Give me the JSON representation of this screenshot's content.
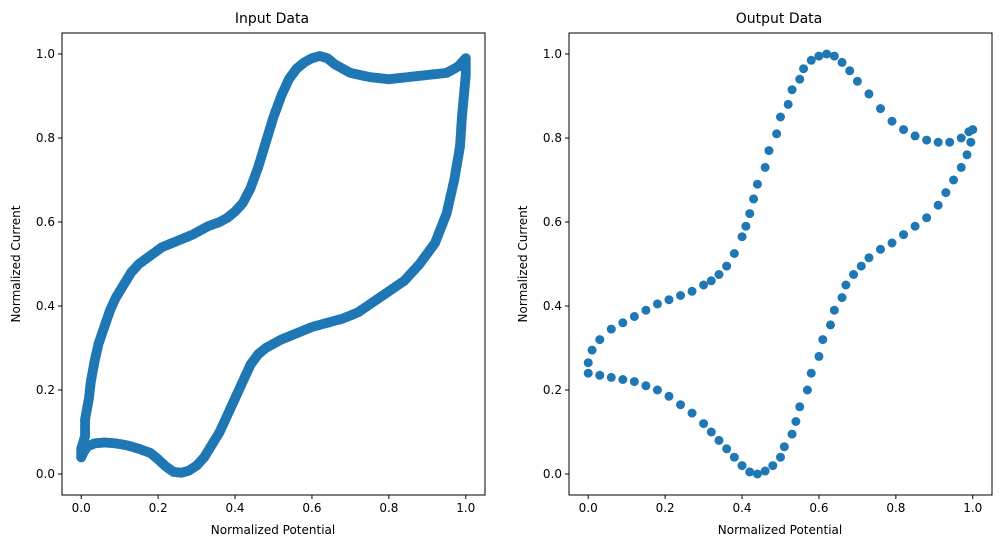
{
  "chart_data": [
    {
      "type": "scatter",
      "title": "Input Data",
      "xlabel": "Normalized Potential",
      "ylabel": "Normalized Current",
      "xlim": [
        -0.05,
        1.05
      ],
      "ylim": [
        -0.05,
        1.05
      ],
      "xticks": [
        "0.0",
        "0.2",
        "0.4",
        "0.6",
        "0.8",
        "1.0"
      ],
      "yticks": [
        "0.0",
        "0.2",
        "0.4",
        "0.6",
        "0.8",
        "1.0"
      ],
      "grid": false,
      "color": "#1f77b4",
      "points": [
        [
          0.0,
          0.04
        ],
        [
          0.0,
          0.06
        ],
        [
          0.01,
          0.09
        ],
        [
          0.01,
          0.13
        ],
        [
          0.02,
          0.18
        ],
        [
          0.025,
          0.22
        ],
        [
          0.035,
          0.27
        ],
        [
          0.045,
          0.31
        ],
        [
          0.06,
          0.35
        ],
        [
          0.075,
          0.39
        ],
        [
          0.09,
          0.42
        ],
        [
          0.11,
          0.45
        ],
        [
          0.13,
          0.48
        ],
        [
          0.15,
          0.5
        ],
        [
          0.18,
          0.52
        ],
        [
          0.21,
          0.54
        ],
        [
          0.25,
          0.555
        ],
        [
          0.29,
          0.57
        ],
        [
          0.33,
          0.59
        ],
        [
          0.36,
          0.6
        ],
        [
          0.38,
          0.61
        ],
        [
          0.4,
          0.625
        ],
        [
          0.42,
          0.645
        ],
        [
          0.44,
          0.68
        ],
        [
          0.46,
          0.73
        ],
        [
          0.48,
          0.79
        ],
        [
          0.5,
          0.85
        ],
        [
          0.52,
          0.9
        ],
        [
          0.54,
          0.94
        ],
        [
          0.56,
          0.965
        ],
        [
          0.58,
          0.98
        ],
        [
          0.6,
          0.99
        ],
        [
          0.62,
          0.995
        ],
        [
          0.64,
          0.99
        ],
        [
          0.66,
          0.975
        ],
        [
          0.7,
          0.955
        ],
        [
          0.75,
          0.945
        ],
        [
          0.8,
          0.94
        ],
        [
          0.85,
          0.945
        ],
        [
          0.9,
          0.95
        ],
        [
          0.95,
          0.955
        ],
        [
          0.98,
          0.97
        ],
        [
          1.0,
          0.99
        ],
        [
          1.0,
          0.95
        ],
        [
          0.995,
          0.9
        ],
        [
          0.99,
          0.85
        ],
        [
          0.985,
          0.78
        ],
        [
          0.97,
          0.7
        ],
        [
          0.95,
          0.62
        ],
        [
          0.92,
          0.55
        ],
        [
          0.88,
          0.5
        ],
        [
          0.84,
          0.46
        ],
        [
          0.8,
          0.435
        ],
        [
          0.76,
          0.41
        ],
        [
          0.72,
          0.385
        ],
        [
          0.68,
          0.37
        ],
        [
          0.64,
          0.36
        ],
        [
          0.6,
          0.35
        ],
        [
          0.56,
          0.335
        ],
        [
          0.52,
          0.32
        ],
        [
          0.48,
          0.3
        ],
        [
          0.46,
          0.285
        ],
        [
          0.44,
          0.26
        ],
        [
          0.42,
          0.22
        ],
        [
          0.4,
          0.18
        ],
        [
          0.38,
          0.14
        ],
        [
          0.36,
          0.1
        ],
        [
          0.34,
          0.07
        ],
        [
          0.32,
          0.04
        ],
        [
          0.3,
          0.02
        ],
        [
          0.28,
          0.008
        ],
        [
          0.26,
          0.003
        ],
        [
          0.24,
          0.005
        ],
        [
          0.22,
          0.018
        ],
        [
          0.2,
          0.035
        ],
        [
          0.18,
          0.05
        ],
        [
          0.15,
          0.06
        ],
        [
          0.12,
          0.068
        ],
        [
          0.09,
          0.073
        ],
        [
          0.06,
          0.075
        ],
        [
          0.035,
          0.073
        ],
        [
          0.015,
          0.065
        ],
        [
          0.005,
          0.05
        ],
        [
          0.0,
          0.04
        ]
      ]
    },
    {
      "type": "scatter",
      "title": "Output Data",
      "xlabel": "Normalized Potential",
      "ylabel": "Normalized Current",
      "xlim": [
        -0.05,
        1.05
      ],
      "ylim": [
        -0.05,
        1.05
      ],
      "xticks": [
        "0.0",
        "0.2",
        "0.4",
        "0.6",
        "0.8",
        "1.0"
      ],
      "yticks": [
        "0.0",
        "0.2",
        "0.4",
        "0.6",
        "0.8",
        "1.0"
      ],
      "grid": false,
      "color": "#1f77b4",
      "points": [
        [
          0.0,
          0.265
        ],
        [
          0.01,
          0.295
        ],
        [
          0.03,
          0.32
        ],
        [
          0.06,
          0.345
        ],
        [
          0.09,
          0.36
        ],
        [
          0.12,
          0.375
        ],
        [
          0.15,
          0.39
        ],
        [
          0.18,
          0.405
        ],
        [
          0.21,
          0.415
        ],
        [
          0.24,
          0.425
        ],
        [
          0.27,
          0.435
        ],
        [
          0.3,
          0.45
        ],
        [
          0.32,
          0.46
        ],
        [
          0.34,
          0.475
        ],
        [
          0.36,
          0.495
        ],
        [
          0.38,
          0.525
        ],
        [
          0.4,
          0.565
        ],
        [
          0.41,
          0.59
        ],
        [
          0.42,
          0.62
        ],
        [
          0.43,
          0.655
        ],
        [
          0.44,
          0.69
        ],
        [
          0.46,
          0.73
        ],
        [
          0.47,
          0.77
        ],
        [
          0.49,
          0.81
        ],
        [
          0.5,
          0.85
        ],
        [
          0.52,
          0.88
        ],
        [
          0.53,
          0.915
        ],
        [
          0.55,
          0.94
        ],
        [
          0.56,
          0.965
        ],
        [
          0.58,
          0.985
        ],
        [
          0.6,
          0.995
        ],
        [
          0.62,
          1.0
        ],
        [
          0.64,
          0.995
        ],
        [
          0.66,
          0.98
        ],
        [
          0.68,
          0.96
        ],
        [
          0.7,
          0.935
        ],
        [
          0.73,
          0.905
        ],
        [
          0.76,
          0.87
        ],
        [
          0.79,
          0.84
        ],
        [
          0.82,
          0.82
        ],
        [
          0.85,
          0.805
        ],
        [
          0.88,
          0.795
        ],
        [
          0.91,
          0.79
        ],
        [
          0.94,
          0.79
        ],
        [
          0.97,
          0.8
        ],
        [
          0.99,
          0.815
        ],
        [
          1.0,
          0.82
        ],
        [
          0.995,
          0.79
        ],
        [
          0.985,
          0.76
        ],
        [
          0.97,
          0.73
        ],
        [
          0.95,
          0.7
        ],
        [
          0.93,
          0.67
        ],
        [
          0.91,
          0.64
        ],
        [
          0.88,
          0.61
        ],
        [
          0.85,
          0.59
        ],
        [
          0.82,
          0.57
        ],
        [
          0.79,
          0.55
        ],
        [
          0.76,
          0.535
        ],
        [
          0.73,
          0.515
        ],
        [
          0.71,
          0.495
        ],
        [
          0.69,
          0.475
        ],
        [
          0.67,
          0.45
        ],
        [
          0.66,
          0.42
        ],
        [
          0.64,
          0.39
        ],
        [
          0.63,
          0.355
        ],
        [
          0.61,
          0.32
        ],
        [
          0.6,
          0.28
        ],
        [
          0.58,
          0.24
        ],
        [
          0.57,
          0.2
        ],
        [
          0.55,
          0.16
        ],
        [
          0.54,
          0.125
        ],
        [
          0.53,
          0.095
        ],
        [
          0.51,
          0.065
        ],
        [
          0.5,
          0.04
        ],
        [
          0.48,
          0.02
        ],
        [
          0.46,
          0.007
        ],
        [
          0.44,
          0.0
        ],
        [
          0.42,
          0.005
        ],
        [
          0.4,
          0.02
        ],
        [
          0.38,
          0.04
        ],
        [
          0.36,
          0.06
        ],
        [
          0.34,
          0.08
        ],
        [
          0.32,
          0.1
        ],
        [
          0.3,
          0.12
        ],
        [
          0.27,
          0.145
        ],
        [
          0.24,
          0.165
        ],
        [
          0.21,
          0.185
        ],
        [
          0.18,
          0.2
        ],
        [
          0.15,
          0.21
        ],
        [
          0.12,
          0.22
        ],
        [
          0.09,
          0.225
        ],
        [
          0.06,
          0.23
        ],
        [
          0.03,
          0.235
        ],
        [
          0.0,
          0.24
        ]
      ]
    }
  ]
}
